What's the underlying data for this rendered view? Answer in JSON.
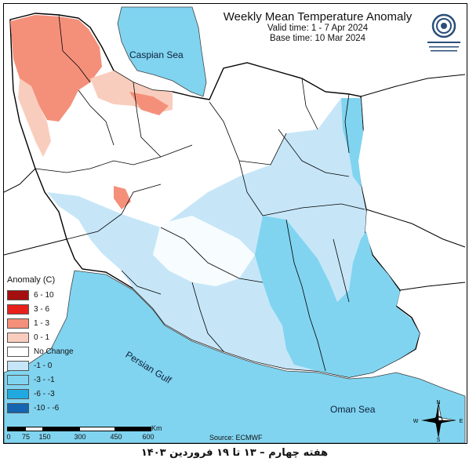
{
  "map": {
    "title": "Weekly Mean Temperature Anomaly",
    "valid_time": "Valid time: 1 - 7 Apr 2024",
    "base_time": "Base time: 10 Mar 2024",
    "source": "Source: ECMWF",
    "caption": "هفته چهارم – ۱۳ تا ۱۹ فروردین ۱۴۰۳"
  },
  "seas": {
    "caspian": "Caspian Sea",
    "persian_gulf": "Persian Gulf",
    "oman": "Oman Sea"
  },
  "legend": {
    "title": "Anomaly (C)",
    "items": [
      {
        "label": "6 - 10",
        "color": "#a50f0f"
      },
      {
        "label": "3 - 6",
        "color": "#e8201c"
      },
      {
        "label": "1 - 3",
        "color": "#f4907a"
      },
      {
        "label": "0 - 1",
        "color": "#f9cdbd"
      },
      {
        "label": "No Change",
        "color": "#ffffff"
      },
      {
        "label": "-1 - 0",
        "color": "#c6e6f8"
      },
      {
        "label": "-3 - -1",
        "color": "#80d4f0"
      },
      {
        "label": "-6 - -3",
        "color": "#20a8e0"
      },
      {
        "label": "-10 - -6",
        "color": "#1565b0"
      }
    ]
  },
  "scale": {
    "ticks": [
      "0",
      "75",
      "150",
      "300",
      "450",
      "600"
    ],
    "unit": "Km"
  },
  "compass": {
    "n": "N",
    "s": "S",
    "e": "E",
    "w": "W"
  },
  "colors": {
    "sea": "#80d4f0",
    "land": "#ffffff",
    "border": "#000000"
  }
}
